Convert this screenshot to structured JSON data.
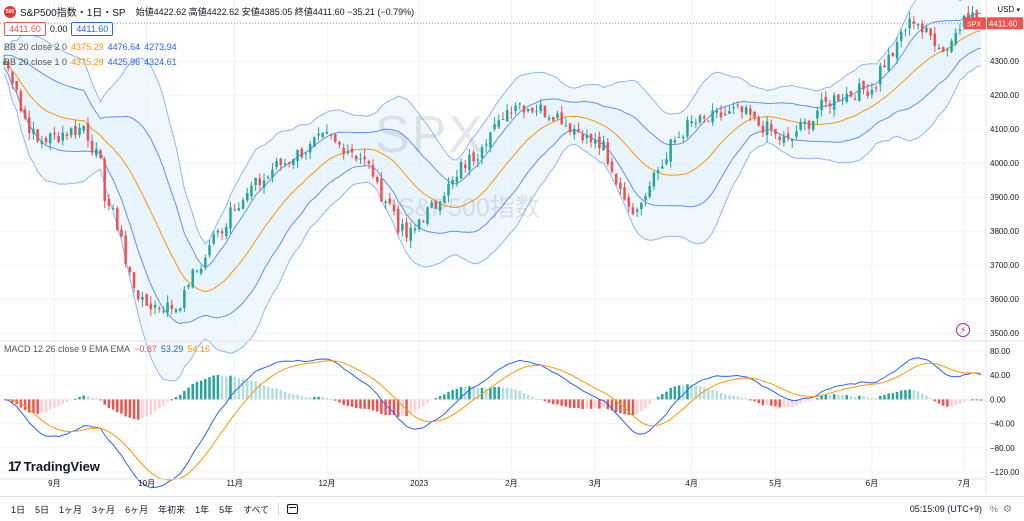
{
  "header": {
    "logo_text": "500",
    "symbol": "S&P500指数・1日・SP",
    "ohlc": "始値4422.62 高値4422.62 安値4385.05 終値4411.60 −35.21 (−0.79%)",
    "sell_price": "4411.60",
    "spread": "0.00",
    "buy_price": "4411.60"
  },
  "indicators": {
    "bb2": {
      "label": "BB 20 close 2 0",
      "basis": "4375.29",
      "upper": "4476.64",
      "lower": "4273.94"
    },
    "bb1": {
      "label": "BB 20 close 1 0",
      "basis": "4375.29",
      "upper": "4425.96",
      "lower": "4324.61"
    },
    "macd": {
      "label": "MACD 12 26 close 9 EMA EMA",
      "hist": "−0.87",
      "macd": "53.29",
      "signal": "54.16"
    }
  },
  "watermark": {
    "ticker": "SPX",
    "name": "S&P500指数"
  },
  "price_axis": {
    "currency": "USD",
    "ticks": [
      "4300.00",
      "4200.00",
      "4100.00",
      "4000.00",
      "3900.00",
      "3800.00",
      "3700.00",
      "3600.00",
      "3500.00"
    ],
    "last_label": "SPX",
    "last_value": "4411.60"
  },
  "macd_axis": {
    "ticks": [
      "80.00",
      "40.00",
      "0.00",
      "−40.00",
      "−80.00",
      "−120.00"
    ]
  },
  "time_axis": {
    "labels": [
      "9月",
      "10月",
      "11月",
      "12月",
      "2023",
      "2月",
      "3月",
      "4月",
      "5月",
      "6月",
      "7月"
    ]
  },
  "brand": {
    "name": "TradingView"
  },
  "bottom_bar": {
    "timeframes": [
      "1日",
      "5日",
      "1ヶ月",
      "3ヶ月",
      "6ヶ月",
      "年初来",
      "1年",
      "5年",
      "すべて"
    ],
    "clock": "05:15:09 (UTC+9)",
    "percent": "%"
  },
  "colors": {
    "up": "#26a69a",
    "down": "#ef5350",
    "bb_outer": "#2962ff",
    "bb_basis": "#ff9800",
    "bb_fill": "#e3f2fd",
    "macd_line": "#2962ff",
    "signal_line": "#ff9800"
  },
  "chart_data": {
    "type": "candlestick",
    "title": "S&P500指数・1日・SP",
    "ylim": [
      3480,
      4480
    ],
    "macd_ylim": [
      -130,
      95
    ],
    "x_labels": [
      "9月",
      "10月",
      "11月",
      "12月",
      "2023",
      "2月",
      "3月",
      "4月",
      "5月",
      "6月",
      "7月"
    ],
    "close_anchors": [
      {
        "date": "2022-08-16",
        "close": 4300
      },
      {
        "date": "2022-08-26",
        "close": 4060
      },
      {
        "date": "2022-09-12",
        "close": 4110
      },
      {
        "date": "2022-09-30",
        "close": 3585
      },
      {
        "date": "2022-10-12",
        "close": 3577
      },
      {
        "date": "2022-10-31",
        "close": 3872
      },
      {
        "date": "2022-11-15",
        "close": 3992
      },
      {
        "date": "2022-12-01",
        "close": 4076
      },
      {
        "date": "2022-12-13",
        "close": 4019
      },
      {
        "date": "2022-12-28",
        "close": 3783
      },
      {
        "date": "2023-01-10",
        "close": 3919
      },
      {
        "date": "2023-02-02",
        "close": 4179
      },
      {
        "date": "2023-02-15",
        "close": 4147
      },
      {
        "date": "2023-03-03",
        "close": 4045
      },
      {
        "date": "2023-03-13",
        "close": 3855
      },
      {
        "date": "2023-03-31",
        "close": 4109
      },
      {
        "date": "2023-04-18",
        "close": 4154
      },
      {
        "date": "2023-05-04",
        "close": 4061
      },
      {
        "date": "2023-05-19",
        "close": 4191
      },
      {
        "date": "2023-06-01",
        "close": 4221
      },
      {
        "date": "2023-06-15",
        "close": 4425
      },
      {
        "date": "2023-06-26",
        "close": 4328
      },
      {
        "date": "2023-07-03",
        "close": 4455
      },
      {
        "date": "2023-07-07",
        "close": 4411.6
      }
    ],
    "last": {
      "open": 4422.62,
      "high": 4422.62,
      "low": 4385.05,
      "close": 4411.6,
      "change": -35.21,
      "change_pct": -0.79
    },
    "bollinger": {
      "period": 20,
      "bands": [
        {
          "mult": 2,
          "basis": 4375.29,
          "upper": 4476.64,
          "lower": 4273.94
        },
        {
          "mult": 1,
          "basis": 4375.29,
          "upper": 4425.96,
          "lower": 4324.61
        }
      ]
    },
    "macd": {
      "fast": 12,
      "slow": 26,
      "signal": 9,
      "histogram": -0.87,
      "macd": 53.29,
      "signal_value": 54.16
    }
  }
}
